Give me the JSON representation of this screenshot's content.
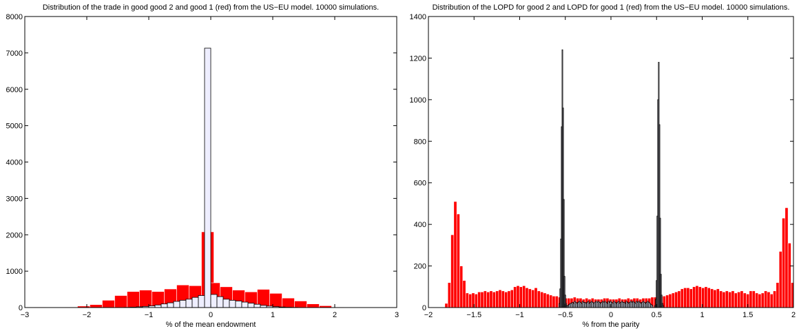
{
  "chart_data": [
    {
      "type": "bar",
      "title": "Distribution of the trade in good good 2 and good 1 (red) from the US−EU model. 10000 simulations.",
      "xlabel": "% of the mean endowment",
      "ylabel": "",
      "xlim": [
        -3,
        3
      ],
      "ylim": [
        0,
        8000
      ],
      "xticks": [
        "−3",
        "−2",
        "−1",
        "0",
        "1",
        "2",
        "3"
      ],
      "xtick_values": [
        -3,
        -2,
        -1,
        0,
        1,
        2,
        3
      ],
      "yticks": [
        "0",
        "1000",
        "2000",
        "3000",
        "4000",
        "5000",
        "6000",
        "7000",
        "8000"
      ],
      "ytick_values": [
        0,
        1000,
        2000,
        3000,
        4000,
        5000,
        6000,
        7000,
        8000
      ],
      "grid": false,
      "legend": "none",
      "series": [
        {
          "color": "#ff0000",
          "edge": "#ffffff",
          "bin_width": 0.2,
          "x": [
            -2.75,
            -2.35,
            -2.25,
            -2.05,
            -1.85,
            -1.65,
            -1.45,
            -1.25,
            -1.05,
            -0.85,
            -0.65,
            -0.45,
            -0.25,
            -0.05,
            0.05,
            0.25,
            0.45,
            0.65,
            0.85,
            1.05,
            1.25,
            1.45,
            1.65,
            1.85,
            2.05
          ],
          "values": [
            10,
            5,
            10,
            40,
            80,
            200,
            330,
            440,
            480,
            440,
            510,
            620,
            600,
            2080,
            680,
            570,
            480,
            430,
            500,
            390,
            260,
            180,
            100,
            50,
            10
          ]
        },
        {
          "color": "#eeeeff",
          "edge": "#000000",
          "bin_width": 0.1,
          "x": [
            -1.35,
            -1.25,
            -1.15,
            -1.05,
            -0.95,
            -0.85,
            -0.75,
            -0.65,
            -0.55,
            -0.45,
            -0.35,
            -0.25,
            -0.15,
            -0.05,
            0.05,
            0.15,
            0.25,
            0.35,
            0.45,
            0.55,
            0.65,
            0.75,
            0.85,
            0.95,
            1.05,
            1.15,
            1.25,
            1.35
          ],
          "values": [
            5,
            10,
            20,
            30,
            45,
            70,
            100,
            130,
            170,
            200,
            230,
            280,
            330,
            7130,
            360,
            300,
            230,
            200,
            180,
            150,
            120,
            90,
            60,
            40,
            25,
            15,
            8,
            5
          ]
        }
      ]
    },
    {
      "type": "bar",
      "title": "Distribution of the LOPD for good 2 and LOPD for good 1 (red) from the US−EU model. 10000 simulations.",
      "xlabel": "% from the parity",
      "ylabel": "",
      "xlim": [
        -2,
        2
      ],
      "ylim": [
        0,
        1400
      ],
      "xticks": [
        "−2",
        "−1.5",
        "−1",
        "−0.5",
        "0",
        "0.5",
        "1",
        "1.5",
        "2"
      ],
      "xtick_values": [
        -2,
        -1.5,
        -1,
        -0.5,
        0,
        0.5,
        1,
        1.5,
        2
      ],
      "yticks": [
        "0",
        "200",
        "400",
        "600",
        "800",
        "1000",
        "1200",
        "1400"
      ],
      "ytick_values": [
        0,
        200,
        400,
        600,
        800,
        1000,
        1200,
        1400
      ],
      "grid": false,
      "legend": "none",
      "series": [
        {
          "color": "#ff0000",
          "edge": "#ffffff",
          "bin_width": 0.0327,
          "x_start": -1.82,
          "values": [
            20,
            120,
            350,
            510,
            450,
            200,
            130,
            70,
            65,
            70,
            65,
            75,
            75,
            80,
            75,
            80,
            75,
            80,
            85,
            80,
            75,
            80,
            85,
            100,
            105,
            100,
            105,
            95,
            90,
            85,
            95,
            80,
            75,
            70,
            65,
            60,
            55,
            55,
            50,
            50,
            45,
            45,
            45,
            50,
            45,
            45,
            40,
            45,
            40,
            45,
            40,
            40,
            40,
            45,
            45,
            40,
            40,
            40,
            45,
            40,
            40,
            45,
            40,
            45,
            45,
            40,
            45,
            45,
            45,
            50,
            50,
            50,
            55,
            55,
            60,
            65,
            70,
            75,
            80,
            90,
            95,
            95,
            90,
            100,
            105,
            100,
            95,
            100,
            95,
            90,
            85,
            90,
            80,
            75,
            80,
            75,
            80,
            70,
            75,
            80,
            70,
            65,
            80,
            80,
            70,
            65,
            70,
            80,
            75,
            65,
            80,
            120,
            270,
            430,
            480,
            310,
            120,
            30
          ]
        },
        {
          "color": "#eeeeff",
          "edge": "#000000",
          "bin_width": 0.008,
          "x": [
            -0.564,
            -0.556,
            -0.548,
            -0.54,
            -0.532,
            -0.524,
            -0.516,
            -0.508,
            -0.5,
            -0.492,
            -0.484,
            0.484,
            0.492,
            0.5,
            0.508,
            0.516,
            0.524,
            0.532,
            0.54,
            0.548,
            0.556,
            0.564,
            0.572
          ],
          "values": [
            20,
            90,
            330,
            870,
            1240,
            960,
            520,
            150,
            60,
            20,
            10,
            10,
            40,
            130,
            440,
            1000,
            1180,
            880,
            430,
            160,
            60,
            20,
            10
          ]
        },
        {
          "color": "#eeeeff",
          "edge": "#000000",
          "bin_width": 0.0123,
          "x_start": -0.476,
          "values": [
            10,
            15,
            20,
            20,
            25,
            20,
            30,
            25,
            20,
            25,
            30,
            25,
            20,
            30,
            25,
            25,
            20,
            25,
            30,
            20,
            25,
            30,
            25,
            20,
            25,
            30,
            25,
            30,
            25,
            20,
            25,
            30,
            25,
            30,
            25,
            20,
            30,
            25,
            30,
            25,
            20,
            30,
            25,
            20,
            25,
            30,
            20,
            25,
            30,
            25,
            25,
            20,
            30,
            25,
            20,
            25,
            30,
            25,
            30,
            25,
            20,
            30,
            25,
            30,
            25,
            20,
            25,
            30,
            25,
            20,
            25,
            30,
            25,
            20,
            15,
            10
          ]
        }
      ]
    }
  ]
}
